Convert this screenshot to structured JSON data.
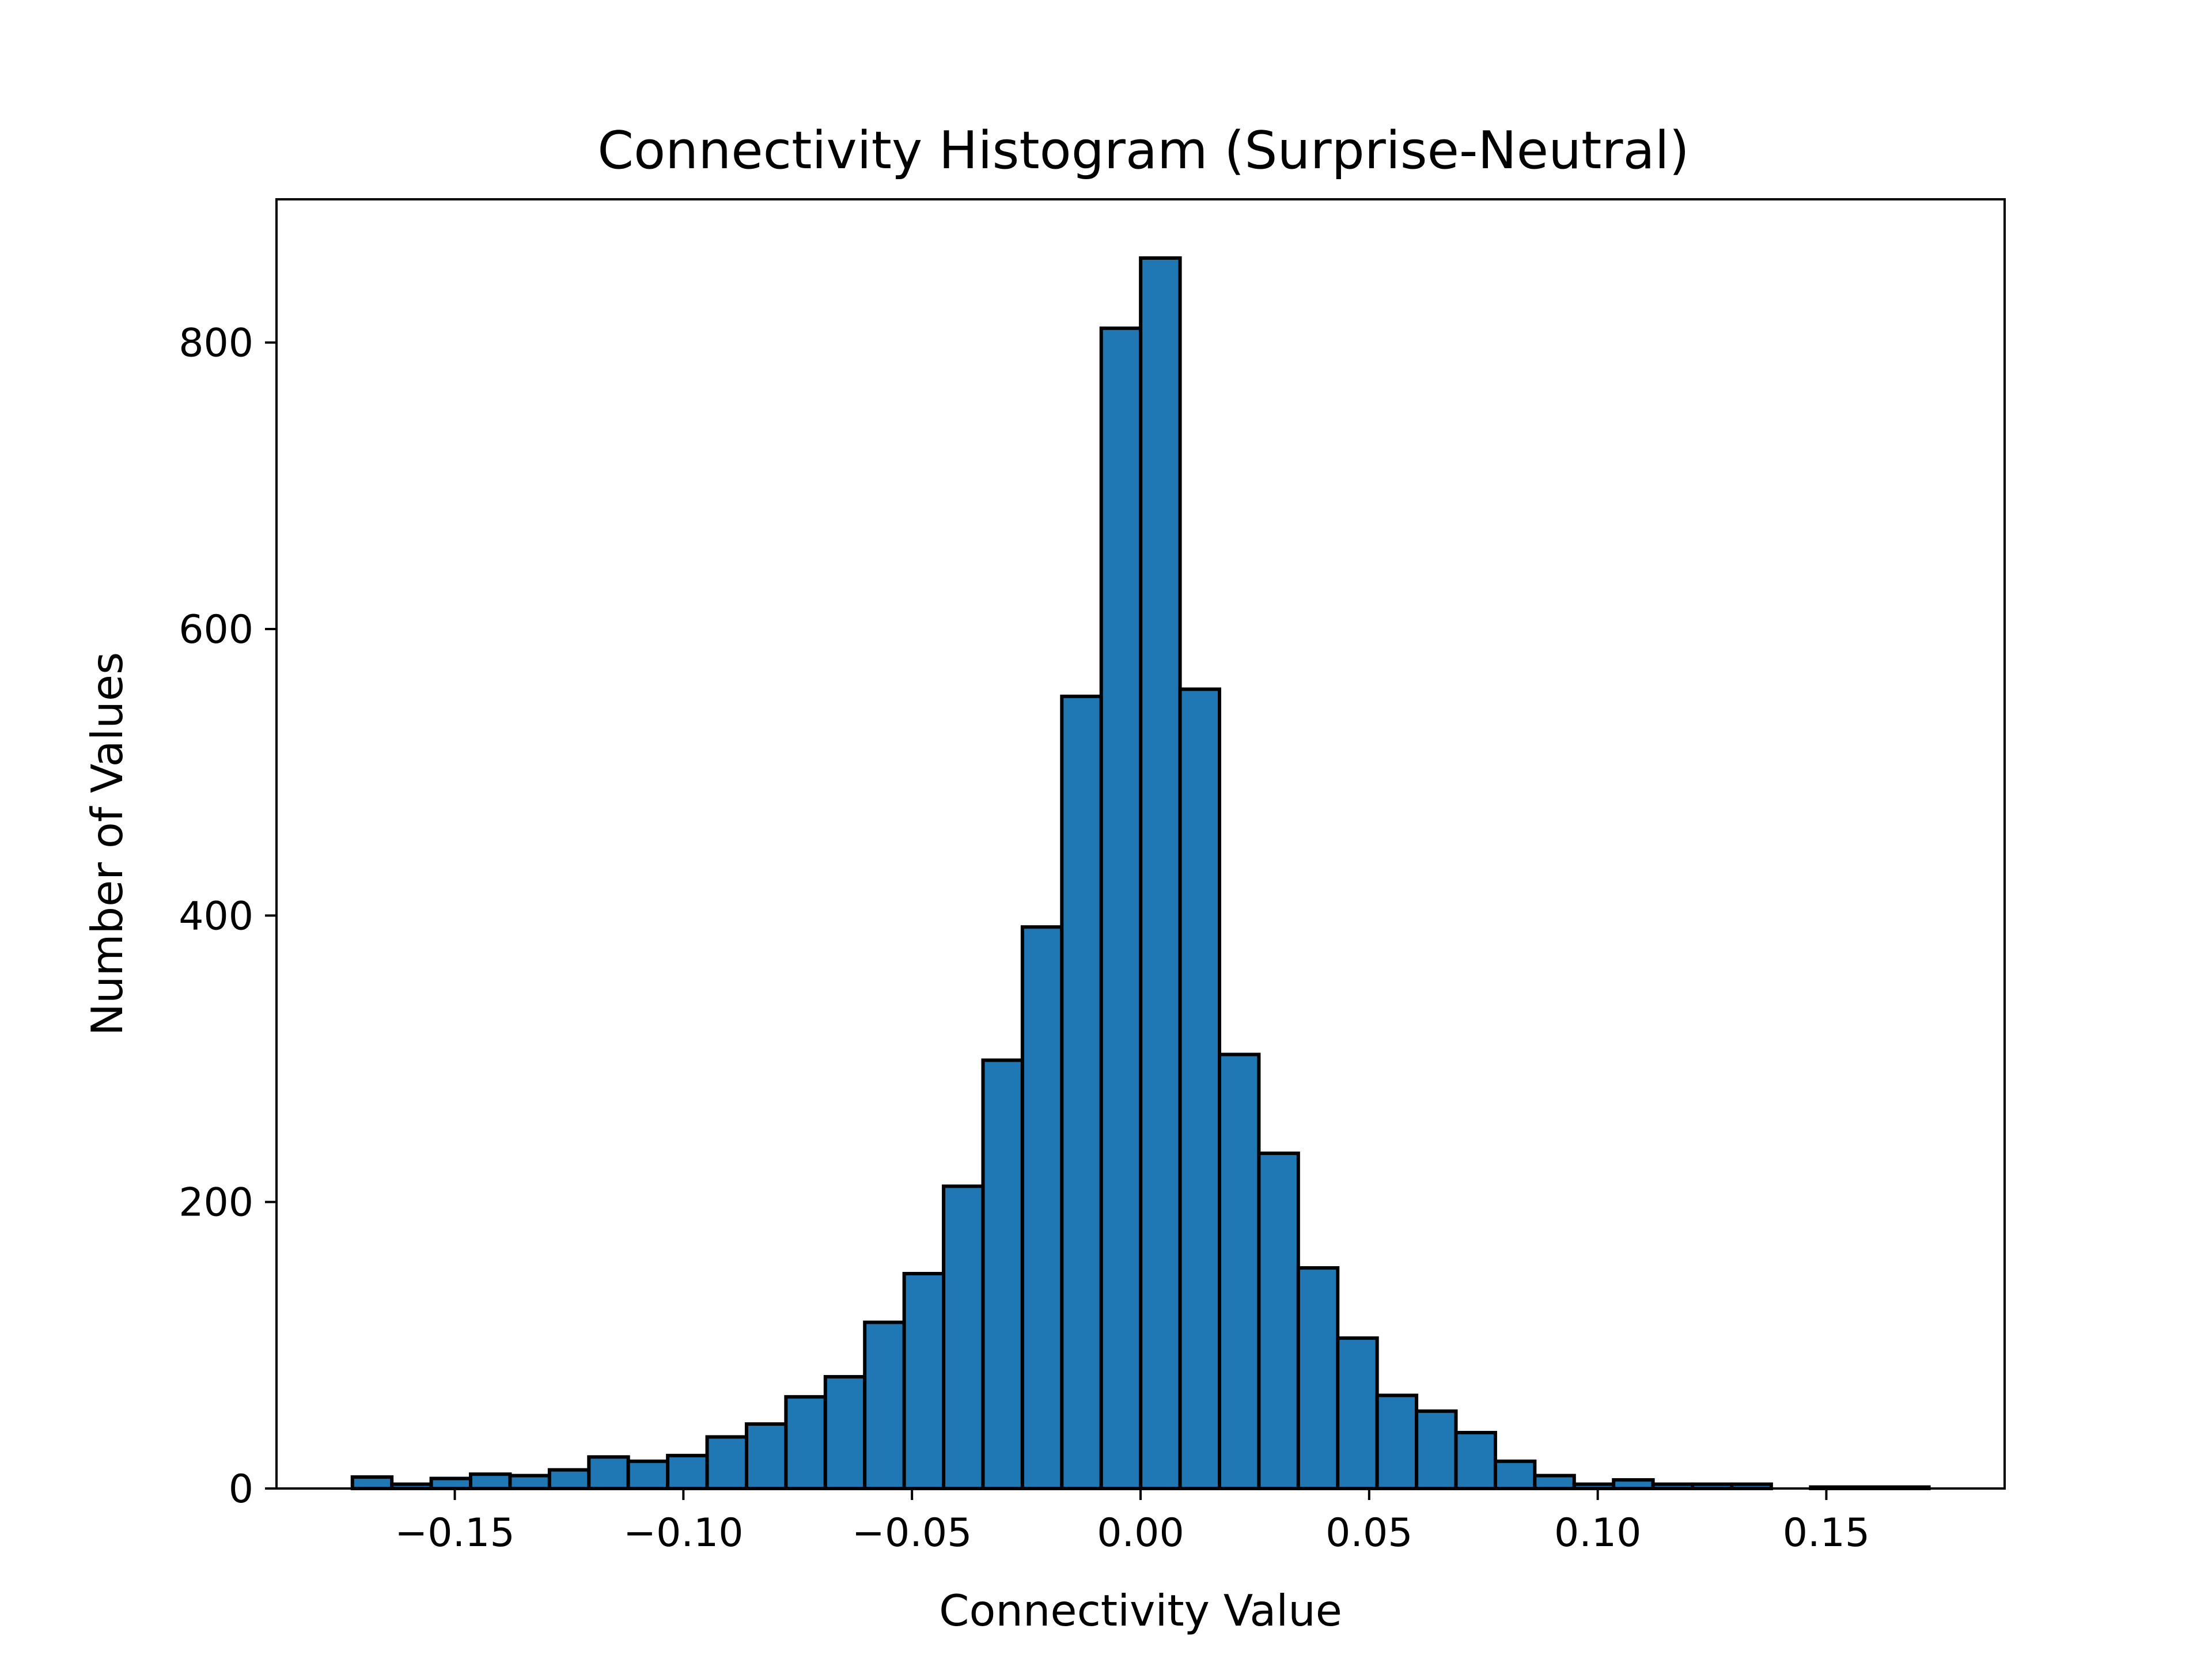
{
  "chart_data": {
    "type": "bar",
    "title": "Connectivity Histogram (Surprise-Neutral)",
    "xlabel": "Connectivity Value",
    "ylabel": "Number of Values",
    "xlim": [
      -0.189,
      0.189
    ],
    "ylim": [
      0,
      900
    ],
    "xticks": [
      -0.15,
      -0.1,
      -0.05,
      0.0,
      0.05,
      0.1,
      0.15
    ],
    "xtick_labels": [
      "−0.15",
      "−0.10",
      "−0.05",
      "0.00",
      "0.05",
      "0.10",
      "0.15"
    ],
    "yticks": [
      0,
      200,
      400,
      600,
      800
    ],
    "ytick_labels": [
      "0",
      "200",
      "400",
      "600",
      "800"
    ],
    "bin_start": -0.1724,
    "bin_width": 0.008621,
    "bin_counts": [
      8,
      3,
      7,
      10,
      9,
      13,
      22,
      19,
      23,
      36,
      45,
      64,
      78,
      116,
      150,
      211,
      299,
      392,
      553,
      810,
      859,
      558,
      303,
      234,
      154,
      105,
      65,
      54,
      39,
      19,
      9,
      3,
      6,
      3,
      3,
      3,
      0,
      1,
      1,
      1
    ],
    "bar_color": "#1f77b4",
    "edge_color": "#000000",
    "grid": false
  }
}
